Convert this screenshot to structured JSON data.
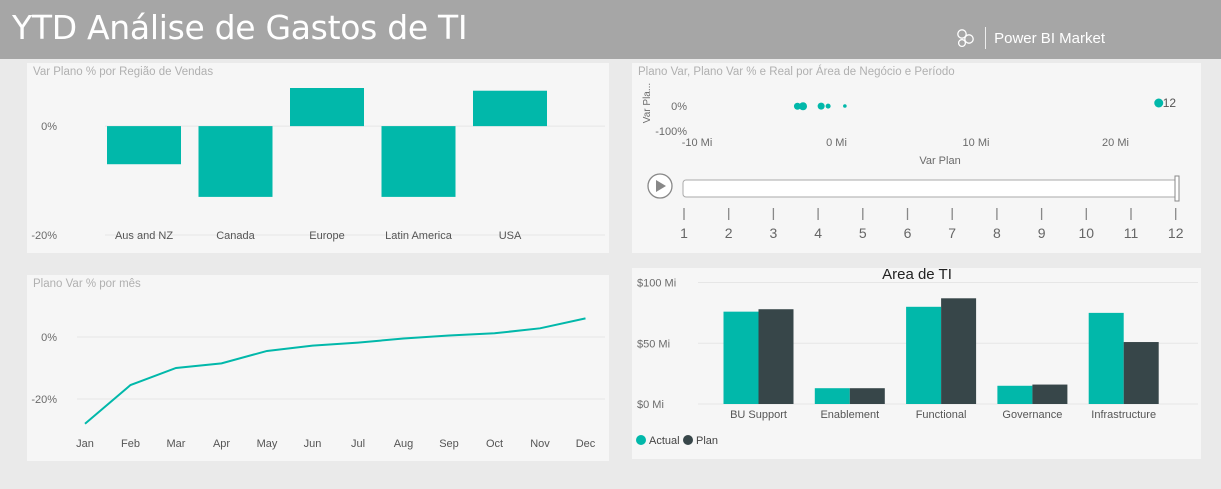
{
  "header": {
    "title": "YTD Análise de Gastos de TI",
    "brand": "Power BI Market",
    "brand_icon": "power-bi-logo-icon"
  },
  "colors": {
    "teal": "#01b8aa",
    "dark": "#374649",
    "grid": "#e6e6e6",
    "axis_text": "#6b6b6b"
  },
  "chart_data": [
    {
      "type": "bar",
      "title": "Var Plano % por Região de Vendas",
      "categories": [
        "Aus and NZ",
        "Canada",
        "Europe",
        "Latin America",
        "USA"
      ],
      "values": [
        -7,
        -13,
        7,
        -13,
        6.5
      ],
      "yticks": [
        "0%",
        "-20%"
      ],
      "ylim": [
        -20,
        7
      ],
      "grid": true
    },
    {
      "type": "scatter",
      "title": "Plano Var, Plano Var % e Real por Área de Negócio e Período",
      "xlabel": "Var Plan",
      "ylabel": "Var Pla...",
      "xticks": [
        "-10 Mi",
        "0 Mi",
        "10 Mi",
        "20 Mi"
      ],
      "yticks": [
        "0%",
        "-100%"
      ],
      "xlim": [
        -10,
        23.5
      ],
      "ylim": [
        -100,
        20
      ],
      "points": [
        {
          "x": -2.8,
          "y": -1
        },
        {
          "x": -2.4,
          "y": -1
        },
        {
          "x": -1.1,
          "y": -0.5
        },
        {
          "x": -0.6,
          "y": -0.5
        },
        {
          "x": 0.6,
          "y": 0
        },
        {
          "x": 23.1,
          "y": 12
        }
      ],
      "point_label": "12",
      "play_axis": {
        "ticks": [
          "1",
          "2",
          "3",
          "4",
          "5",
          "6",
          "7",
          "8",
          "9",
          "10",
          "11",
          "12"
        ],
        "current": "12"
      }
    },
    {
      "type": "line",
      "title": "Plano Var % por mês",
      "categories": [
        "Jan",
        "Feb",
        "Mar",
        "Apr",
        "May",
        "Jun",
        "Jul",
        "Aug",
        "Sep",
        "Oct",
        "Nov",
        "Dec"
      ],
      "values": [
        -28,
        -15.5,
        -10,
        -8.5,
        -4.5,
        -2.8,
        -1.8,
        -0.5,
        0.5,
        1.2,
        2.8,
        6
      ],
      "yticks": [
        "0%",
        "-20%"
      ],
      "ylim": [
        -30,
        10
      ],
      "grid": true
    },
    {
      "type": "bar",
      "title": "Área de TI",
      "categories": [
        "BU Support",
        "Enablement",
        "Functional",
        "Governance",
        "Infrastructure"
      ],
      "series": [
        {
          "name": "Actual",
          "values": [
            76,
            13,
            80,
            15,
            75
          ]
        },
        {
          "name": "Plan",
          "values": [
            78,
            13,
            87,
            16,
            51
          ]
        }
      ],
      "yticks": [
        "$100 Mi",
        "$50 Mi",
        "$0 Mi"
      ],
      "ylim": [
        0,
        100
      ],
      "legend": "bottom-left",
      "grid": true
    }
  ]
}
